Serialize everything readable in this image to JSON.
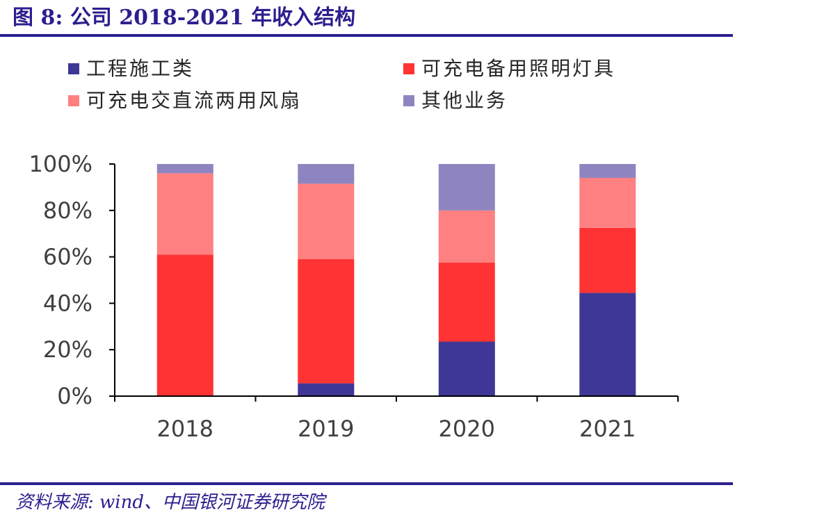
{
  "header": {
    "title": "图 8:  公司 2018-2021 年收入结构"
  },
  "footer": {
    "source": "资料来源:  wind、中国银河证券研究院"
  },
  "legend": {
    "items": [
      {
        "label": "工程施工类",
        "color": "#3f3795"
      },
      {
        "label": "可充电备用照明灯具",
        "color": "#ff3333"
      },
      {
        "label": "可充电交直流两用风扇",
        "color": "#ff8080"
      },
      {
        "label": "其他业务",
        "color": "#8e85c0"
      }
    ]
  },
  "chart_data": {
    "type": "bar",
    "stacked": true,
    "categories": [
      "2018",
      "2019",
      "2020",
      "2021"
    ],
    "series": [
      {
        "name": "工程施工类",
        "color": "#3f3795",
        "values": [
          0,
          5.5,
          23.5,
          44.5
        ]
      },
      {
        "name": "可充电备用照明灯具",
        "color": "#ff3333",
        "values": [
          61,
          53.5,
          34,
          28
        ]
      },
      {
        "name": "可充电交直流两用风扇",
        "color": "#ff8080",
        "values": [
          35,
          32.5,
          22.5,
          21.5
        ]
      },
      {
        "name": "其他业务",
        "color": "#8e85c0",
        "values": [
          4,
          8.5,
          20,
          6
        ]
      }
    ],
    "ylim": [
      0,
      100
    ],
    "yticks": [
      "0%",
      "20%",
      "40%",
      "60%",
      "80%",
      "100%"
    ],
    "xlabel": "",
    "ylabel": "",
    "grid": false,
    "legend_position": "top"
  }
}
